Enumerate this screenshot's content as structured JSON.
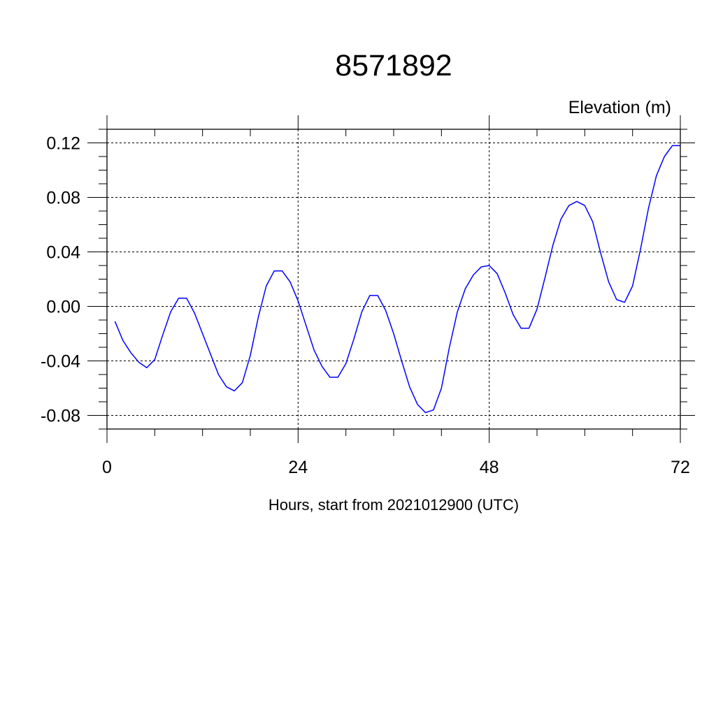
{
  "chart_data": {
    "type": "line",
    "title": "8571892",
    "subtitle": "Elevation (m)",
    "xlabel": "Hours, start from 2021012900 (UTC)",
    "ylabel": "",
    "xlim": [
      0,
      72
    ],
    "ylim": [
      -0.09,
      0.13
    ],
    "x_ticks": [
      0,
      24,
      48,
      72
    ],
    "x_tick_labels": [
      "0",
      "24",
      "48",
      "72"
    ],
    "y_ticks": [
      -0.08,
      -0.04,
      0.0,
      0.04,
      0.08,
      0.12
    ],
    "y_tick_labels": [
      "-0.08",
      "-0.04",
      "0.00",
      "0.04",
      "0.08",
      "0.12"
    ],
    "grid": true,
    "line_color": "#0000ff",
    "series": [
      {
        "x": [
          1,
          2,
          3,
          4,
          5,
          6,
          7,
          8,
          9,
          10,
          11,
          12,
          13,
          14,
          15,
          16,
          17,
          18,
          19,
          20,
          21,
          22,
          23,
          24,
          25,
          26,
          27,
          28,
          29,
          30,
          31,
          32,
          33,
          34,
          35,
          36,
          37,
          38,
          39,
          40,
          41,
          42,
          43,
          44,
          45,
          46,
          47,
          48,
          49,
          50,
          51,
          52,
          53,
          54,
          55,
          56,
          57,
          58,
          59,
          60,
          61,
          62,
          63,
          64,
          65,
          66,
          67,
          68,
          69,
          70,
          71,
          72
        ],
        "values": [
          -0.011,
          -0.025,
          -0.034,
          -0.041,
          -0.045,
          -0.039,
          -0.021,
          -0.004,
          0.006,
          0.006,
          -0.005,
          -0.02,
          -0.035,
          -0.05,
          -0.059,
          -0.062,
          -0.056,
          -0.036,
          -0.008,
          0.015,
          0.026,
          0.026,
          0.018,
          0.004,
          -0.014,
          -0.032,
          -0.044,
          -0.052,
          -0.052,
          -0.042,
          -0.024,
          -0.004,
          0.008,
          0.008,
          -0.003,
          -0.02,
          -0.04,
          -0.059,
          -0.072,
          -0.078,
          -0.076,
          -0.06,
          -0.03,
          -0.004,
          0.013,
          0.023,
          0.029,
          0.03,
          0.024,
          0.01,
          -0.006,
          -0.016,
          -0.016,
          -0.002,
          0.021,
          0.045,
          0.064,
          0.074,
          0.077,
          0.074,
          0.062,
          0.039,
          0.018,
          0.005,
          0.003,
          0.015,
          0.042,
          0.072,
          0.096,
          0.11,
          0.118,
          0.118
        ]
      }
    ]
  }
}
